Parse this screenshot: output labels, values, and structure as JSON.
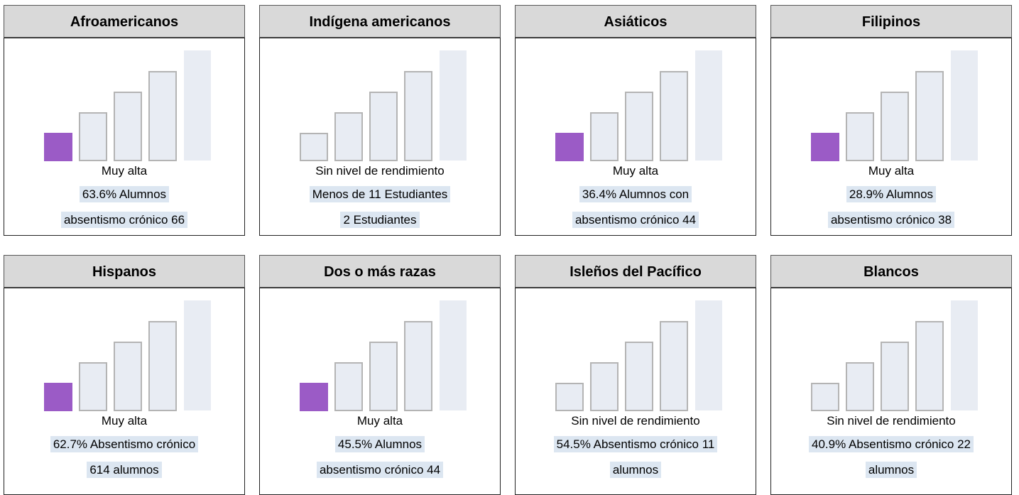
{
  "cards": [
    {
      "title": "Afroamericanos",
      "highlighted": true,
      "level": "Muy alta",
      "lines": [
        "63.6% Alumnos",
        "absentismo crónico 66"
      ]
    },
    {
      "title": "Indígena americanos",
      "highlighted": false,
      "level": "Sin nivel de rendimiento",
      "lines": [
        "Menos de 11 Estudiantes",
        "2 Estudiantes"
      ]
    },
    {
      "title": "Asiáticos",
      "highlighted": true,
      "level": "Muy alta",
      "lines": [
        "36.4%  Alumnos con",
        "absentismo crónico 44"
      ]
    },
    {
      "title": "Filipinos",
      "highlighted": true,
      "level": "Muy alta",
      "lines": [
        "28.9% Alumnos",
        "absentismo crónico 38"
      ]
    },
    {
      "title": "Hispanos",
      "highlighted": true,
      "level": "Muy alta",
      "lines": [
        "62.7%  Absentismo crónico",
        "614 alumnos"
      ]
    },
    {
      "title": "Dos o más razas",
      "highlighted": true,
      "level": "Muy alta",
      "lines": [
        "45.5% Alumnos",
        "absentismo crónico 44"
      ]
    },
    {
      "title": "Isleños del Pacífico",
      "highlighted": false,
      "level": "Sin nivel de rendimiento",
      "lines": [
        "54.5%  Absentismo crónico 11",
        "alumnos"
      ]
    },
    {
      "title": "Blancos",
      "highlighted": false,
      "level": "Sin nivel de rendimiento",
      "lines": [
        "40.9%  Absentismo crónico 22",
        "alumnos"
      ]
    }
  ]
}
